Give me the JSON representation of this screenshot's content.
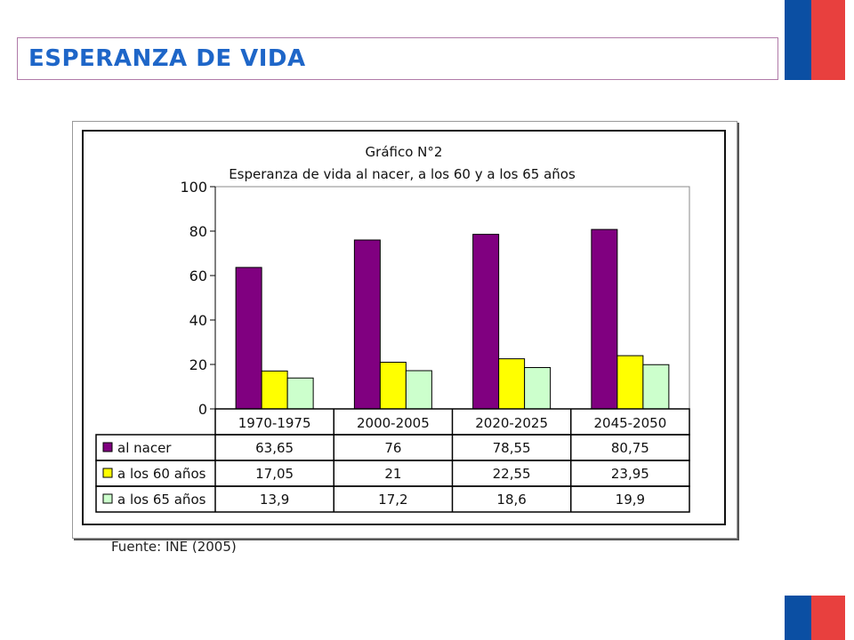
{
  "slide": {
    "title": "ESPERANZA DE VIDA",
    "source": "Fuente: INE (2005)"
  },
  "colors": {
    "flag_blue": "#0b4fa3",
    "flag_red": "#e8403e",
    "title": "#1e66c8"
  },
  "chart_data": {
    "type": "bar",
    "title": "Gráfico N°2",
    "subtitle": "Esperanza de vida al nacer, a los 60 y a los 65 años",
    "categories": [
      "1970-1975",
      "2000-2005",
      "2020-2025",
      "2045-2050"
    ],
    "series": [
      {
        "name": "al nacer",
        "color": "#800080",
        "values": [
          63.65,
          76,
          78.55,
          80.75
        ],
        "labels": [
          "63,65",
          "76",
          "78,55",
          "80,75"
        ]
      },
      {
        "name": "a los 60 años",
        "color": "#ffff00",
        "values": [
          17.05,
          21,
          22.55,
          23.95
        ],
        "labels": [
          "17,05",
          "21",
          "22,55",
          "23,95"
        ]
      },
      {
        "name": "a los 65 años",
        "color": "#ccffcc",
        "values": [
          13.9,
          17.2,
          18.6,
          19.9
        ],
        "labels": [
          "13,9",
          "17,2",
          "18,6",
          "19,9"
        ]
      }
    ],
    "ylim": [
      0,
      100
    ],
    "yticks": [
      0,
      20,
      40,
      60,
      80,
      100
    ],
    "grid": false,
    "legend": "data-table"
  }
}
